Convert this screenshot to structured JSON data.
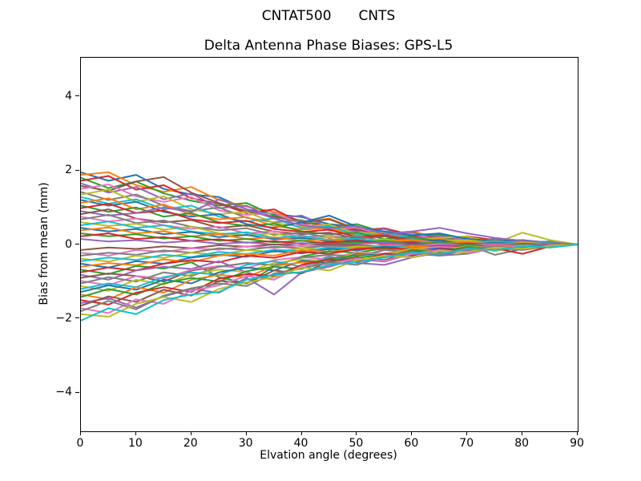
{
  "figure": {
    "background": "#ffffff"
  },
  "suptitle": {
    "left_text": "CNTAT500",
    "right_text": "CNTS"
  },
  "chart_data": {
    "type": "line",
    "title": "Delta Antenna Phase Biases: GPS-L5",
    "xlabel": "Elvation angle (degrees)",
    "ylabel": "Bias from mean (mm)",
    "xlim": [
      0,
      90
    ],
    "ylim": [
      -5.04,
      5.04
    ],
    "grid": false,
    "legend": "none",
    "line_width": 2,
    "xticks": [
      {
        "value": 0,
        "label": "0"
      },
      {
        "value": 10,
        "label": "10"
      },
      {
        "value": 20,
        "label": "20"
      },
      {
        "value": 30,
        "label": "30"
      },
      {
        "value": 40,
        "label": "40"
      },
      {
        "value": 50,
        "label": "50"
      },
      {
        "value": 60,
        "label": "60"
      },
      {
        "value": 70,
        "label": "70"
      },
      {
        "value": 80,
        "label": "80"
      },
      {
        "value": 90,
        "label": "90"
      }
    ],
    "yticks": [
      {
        "value": -4,
        "label": "−4"
      },
      {
        "value": -2,
        "label": "−2"
      },
      {
        "value": 0,
        "label": "0"
      },
      {
        "value": 2,
        "label": "2"
      },
      {
        "value": 4,
        "label": "4"
      }
    ],
    "palette": [
      "#1f77b4",
      "#ff7f0e",
      "#2ca02c",
      "#d62728",
      "#9467bd",
      "#8c564b",
      "#e377c2",
      "#7f7f7f",
      "#bcbd22",
      "#17becf"
    ],
    "x": [
      0,
      5,
      10,
      15,
      20,
      25,
      30,
      35,
      40,
      45,
      50,
      55,
      60,
      65,
      70,
      75,
      80,
      85,
      90
    ],
    "series": [
      {
        "values": [
          1.95,
          1.72,
          1.88,
          1.5,
          1.35,
          1.28,
          0.95,
          0.82,
          0.74,
          0.55,
          0.48,
          0.35,
          0.22,
          0.25,
          0.12,
          0.15,
          0.05,
          0.08,
          0
        ]
      },
      {
        "values": [
          1.88,
          1.95,
          1.6,
          1.42,
          1.55,
          1.2,
          1.02,
          0.88,
          0.62,
          0.7,
          0.42,
          0.3,
          0.35,
          0.18,
          0.2,
          0.08,
          0.12,
          0.03,
          0
        ]
      },
      {
        "values": [
          1.8,
          1.52,
          1.7,
          1.38,
          1.18,
          1.05,
          1.12,
          0.78,
          0.65,
          0.48,
          0.55,
          0.32,
          0.2,
          0.28,
          0.1,
          0.06,
          0.1,
          0.04,
          0
        ]
      },
      {
        "values": [
          1.72,
          1.85,
          1.48,
          1.6,
          1.25,
          1.1,
          0.85,
          0.95,
          0.58,
          0.52,
          0.38,
          0.44,
          0.25,
          0.15,
          0.22,
          0.12,
          0.04,
          0.07,
          0
        ]
      },
      {
        "values": [
          1.65,
          1.4,
          1.55,
          1.22,
          1.38,
          0.98,
          1.05,
          0.7,
          0.78,
          0.45,
          0.35,
          0.42,
          0.18,
          0.24,
          0.08,
          0.14,
          0.06,
          0.02,
          0
        ]
      },
      {
        "values": [
          1.58,
          1.45,
          1.7,
          1.82,
          1.4,
          1.12,
          0.9,
          0.75,
          0.6,
          0.68,
          0.4,
          0.28,
          0.32,
          0.16,
          0.18,
          0.06,
          0.09,
          0.03,
          0
        ]
      },
      {
        "values": [
          1.5,
          1.62,
          1.3,
          1.15,
          1.28,
          0.92,
          0.8,
          0.85,
          0.55,
          0.4,
          0.46,
          0.24,
          0.3,
          0.12,
          0.16,
          0.1,
          0.02,
          0.05,
          0
        ]
      },
      {
        "values": [
          1.42,
          1.2,
          1.35,
          1.05,
          0.9,
          1.0,
          0.72,
          0.6,
          0.66,
          0.38,
          0.3,
          0.36,
          0.15,
          0.2,
          0.06,
          0.12,
          0.07,
          0.04,
          0
        ]
      },
      {
        "values": [
          1.35,
          1.48,
          1.15,
          1.3,
          0.95,
          0.82,
          0.88,
          0.58,
          0.48,
          0.54,
          0.28,
          0.34,
          0.12,
          0.18,
          0.22,
          0.04,
          0.32,
          0.12,
          0
        ]
      },
      {
        "values": [
          1.28,
          1.1,
          1.22,
          0.95,
          1.05,
          0.75,
          0.62,
          0.7,
          0.44,
          0.5,
          0.25,
          0.3,
          0.18,
          0.1,
          0.14,
          0.08,
          0.05,
          0.02,
          0
        ]
      },
      {
        "values": [
          1.2,
          1.05,
          1.15,
          0.88,
          0.75,
          0.82,
          0.55,
          0.45,
          0.6,
          0.78,
          0.48,
          0.35,
          0.25,
          0.3,
          0.15,
          0.1,
          0.12,
          0.05,
          0
        ]
      },
      {
        "values": [
          1.12,
          1.25,
          0.95,
          1.08,
          0.8,
          0.68,
          0.74,
          0.5,
          0.4,
          0.45,
          0.22,
          0.28,
          0.1,
          0.15,
          0.05,
          0.09,
          0.03,
          0.06,
          0
        ]
      },
      {
        "values": [
          1.05,
          0.88,
          1.0,
          0.75,
          0.85,
          0.6,
          0.5,
          0.56,
          0.35,
          0.28,
          0.32,
          0.15,
          0.2,
          0.08,
          0.12,
          0.04,
          0.06,
          0.02,
          0
        ]
      },
      {
        "values": [
          0.98,
          1.1,
          0.85,
          0.92,
          0.68,
          0.58,
          0.64,
          0.42,
          0.34,
          0.4,
          0.2,
          0.25,
          0.12,
          0.06,
          0.1,
          0.03,
          0.05,
          0.01,
          0
        ]
      },
      {
        "values": [
          0.9,
          0.78,
          0.85,
          1.0,
          0.88,
          1.22,
          0.95,
          0.7,
          0.52,
          0.44,
          0.5,
          0.28,
          0.35,
          0.45,
          0.3,
          0.18,
          0.1,
          0.06,
          0
        ]
      },
      {
        "values": [
          0.82,
          0.95,
          0.7,
          0.6,
          0.66,
          0.45,
          0.52,
          0.35,
          0.28,
          0.32,
          0.16,
          0.22,
          0.08,
          0.12,
          0.04,
          0.07,
          0.02,
          0.04,
          0
        ]
      },
      {
        "values": [
          0.75,
          0.62,
          0.7,
          0.52,
          0.42,
          0.48,
          0.3,
          0.36,
          0.2,
          0.25,
          0.12,
          0.08,
          0.14,
          0.05,
          0.08,
          0.02,
          0.04,
          0.01,
          0
        ]
      },
      {
        "values": [
          0.68,
          0.8,
          0.58,
          0.65,
          0.48,
          0.38,
          0.44,
          0.26,
          0.32,
          0.18,
          0.22,
          0.1,
          0.15,
          0.06,
          0.02,
          0.05,
          0.01,
          0.03,
          0
        ]
      },
      {
        "values": [
          0.6,
          0.5,
          0.56,
          0.4,
          0.48,
          0.3,
          0.25,
          0.3,
          0.15,
          0.2,
          0.1,
          0.14,
          0.05,
          0.08,
          0.12,
          0.03,
          0.06,
          0.02,
          0
        ]
      },
      {
        "values": [
          0.52,
          0.62,
          0.45,
          0.52,
          0.35,
          0.28,
          0.33,
          0.18,
          0.24,
          0.12,
          0.16,
          0.06,
          0.1,
          0.03,
          0.05,
          0.08,
          0.02,
          0.04,
          0
        ]
      },
      {
        "values": [
          0.45,
          0.35,
          0.42,
          0.28,
          0.34,
          0.2,
          0.26,
          0.14,
          0.18,
          0.08,
          0.12,
          0.04,
          0.07,
          0.1,
          0.02,
          0.05,
          0.01,
          0.02,
          0
        ]
      },
      {
        "values": [
          0.38,
          0.46,
          0.3,
          0.36,
          0.22,
          0.28,
          0.15,
          0.2,
          0.1,
          0.14,
          0.05,
          0.08,
          0.12,
          0.04,
          0.06,
          0.01,
          0.03,
          0.01,
          0
        ]
      },
      {
        "values": [
          0.3,
          0.22,
          0.28,
          0.16,
          0.22,
          0.1,
          0.15,
          0.06,
          0.1,
          0.03,
          0.06,
          0.1,
          0.02,
          0.05,
          0.01,
          0.03,
          0.0,
          0.02,
          0
        ]
      },
      {
        "values": [
          0.22,
          0.3,
          0.15,
          0.2,
          0.1,
          0.14,
          0.05,
          0.09,
          0.02,
          0.06,
          0.1,
          0.01,
          0.04,
          0.0,
          0.03,
          0.0,
          0.02,
          0.0,
          0
        ]
      },
      {
        "values": [
          0.15,
          0.08,
          0.12,
          0.05,
          0.1,
          0.02,
          0.06,
          0.0,
          0.04,
          0.0,
          0.02,
          0.05,
          0.0,
          0.03,
          0.0,
          0.02,
          0.0,
          0.01,
          0
        ]
      },
      {
        "values": [
          -0.15,
          -0.08,
          -0.12,
          -0.05,
          -0.1,
          -0.02,
          -0.06,
          0.0,
          -0.04,
          0.0,
          -0.02,
          -0.05,
          0.0,
          -0.03,
          0.0,
          -0.02,
          0.0,
          -0.01,
          0
        ]
      },
      {
        "values": [
          -0.22,
          -0.3,
          -0.15,
          -0.2,
          -0.1,
          -0.14,
          -0.05,
          -0.09,
          -0.02,
          -0.06,
          -0.1,
          -0.01,
          -0.04,
          0.0,
          -0.03,
          0.0,
          -0.02,
          0.0,
          0
        ]
      },
      {
        "values": [
          -0.3,
          -0.22,
          -0.28,
          -0.16,
          -0.22,
          -0.1,
          -0.15,
          -0.06,
          -0.1,
          -0.03,
          -0.06,
          -0.1,
          -0.02,
          -0.05,
          -0.01,
          -0.28,
          -0.12,
          -0.02,
          0
        ]
      },
      {
        "values": [
          -0.38,
          -0.46,
          -0.3,
          -0.36,
          -0.22,
          -0.28,
          -0.15,
          -0.2,
          -0.1,
          -0.14,
          -0.05,
          -0.08,
          -0.12,
          -0.04,
          -0.06,
          -0.18,
          -0.03,
          -0.08,
          0
        ]
      },
      {
        "values": [
          -0.45,
          -0.35,
          -0.42,
          -0.28,
          -0.34,
          -0.2,
          -0.26,
          -0.14,
          -0.18,
          -0.08,
          -0.12,
          -0.04,
          -0.07,
          -0.1,
          -0.02,
          -0.05,
          -0.01,
          -0.02,
          0
        ]
      },
      {
        "values": [
          -0.52,
          -0.62,
          -0.45,
          -0.52,
          -0.35,
          -0.28,
          -0.33,
          -0.18,
          -0.24,
          -0.12,
          -0.16,
          -0.06,
          -0.1,
          -0.03,
          -0.05,
          -0.08,
          -0.02,
          -0.04,
          0
        ]
      },
      {
        "values": [
          -0.6,
          -0.5,
          -0.56,
          -0.4,
          -0.48,
          -0.3,
          -0.25,
          -0.3,
          -0.15,
          -0.2,
          -0.1,
          -0.14,
          -0.05,
          -0.08,
          -0.12,
          -0.03,
          -0.06,
          -0.02,
          0
        ]
      },
      {
        "values": [
          -0.68,
          -0.8,
          -0.58,
          -0.65,
          -0.48,
          -0.88,
          -1.05,
          -0.6,
          -0.32,
          -0.18,
          -0.22,
          -0.1,
          -0.15,
          -0.06,
          -0.02,
          -0.05,
          -0.01,
          -0.03,
          0
        ]
      },
      {
        "values": [
          -0.75,
          -0.62,
          -0.7,
          -0.52,
          -0.42,
          -0.48,
          -0.3,
          -0.36,
          -0.2,
          -0.25,
          -0.12,
          -0.08,
          -0.14,
          -0.05,
          -0.08,
          -0.02,
          -0.04,
          -0.01,
          0
        ]
      },
      {
        "values": [
          -0.82,
          -0.95,
          -0.7,
          -0.6,
          -0.66,
          -0.45,
          -0.75,
          -0.95,
          -0.55,
          -0.32,
          -0.5,
          -0.55,
          -0.35,
          -0.22,
          -0.12,
          -0.07,
          -0.02,
          -0.04,
          0
        ]
      },
      {
        "values": [
          -0.9,
          -0.78,
          -0.85,
          -1.0,
          -0.7,
          -0.6,
          -0.5,
          -0.56,
          -0.35,
          -0.28,
          -0.32,
          -0.15,
          -0.2,
          -0.08,
          -0.12,
          -0.04,
          -0.06,
          -0.02,
          0
        ]
      },
      {
        "values": [
          -0.98,
          -1.1,
          -0.85,
          -0.92,
          -0.68,
          -0.58,
          -0.64,
          -0.42,
          -0.34,
          -0.4,
          -0.2,
          -0.25,
          -0.12,
          -0.06,
          -0.1,
          -0.03,
          -0.05,
          -0.01,
          0
        ]
      },
      {
        "values": [
          -1.05,
          -0.88,
          -1.0,
          -0.75,
          -0.85,
          -0.6,
          -0.5,
          -0.56,
          -0.35,
          -0.28,
          -0.32,
          -0.15,
          -0.2,
          -0.3,
          -0.25,
          -0.1,
          -0.15,
          -0.05,
          0
        ]
      },
      {
        "values": [
          -1.12,
          -1.25,
          -0.95,
          -1.08,
          -0.8,
          -0.68,
          -0.74,
          -0.5,
          -0.4,
          -0.45,
          -0.22,
          -0.28,
          -0.1,
          -0.15,
          -0.05,
          -0.09,
          -0.03,
          -0.06,
          0
        ]
      },
      {
        "values": [
          -1.2,
          -1.05,
          -1.15,
          -0.88,
          -0.75,
          -0.82,
          -0.55,
          -0.45,
          -0.6,
          -0.35,
          -0.48,
          -0.25,
          -0.3,
          -0.15,
          -0.1,
          -0.12,
          -0.05,
          -0.02,
          0
        ]
      },
      {
        "values": [
          -1.28,
          -1.1,
          -1.22,
          -0.95,
          -1.05,
          -0.75,
          -0.62,
          -0.7,
          -0.44,
          -0.5,
          -0.25,
          -0.3,
          -0.18,
          -0.1,
          -0.14,
          -0.08,
          -0.05,
          -0.02,
          0
        ]
      },
      {
        "values": [
          -1.35,
          -1.48,
          -1.15,
          -1.3,
          -0.95,
          -0.82,
          -0.88,
          -0.58,
          -0.48,
          -0.54,
          -0.28,
          -0.34,
          -0.12,
          -0.18,
          -0.22,
          -0.04,
          -0.08,
          -0.03,
          0
        ]
      },
      {
        "values": [
          -1.42,
          -1.2,
          -1.35,
          -1.05,
          -0.9,
          -1.0,
          -0.72,
          -0.6,
          -0.66,
          -0.38,
          -0.3,
          -0.36,
          -0.15,
          -0.2,
          -0.06,
          -0.12,
          -0.07,
          -0.04,
          0
        ]
      },
      {
        "values": [
          -1.5,
          -1.62,
          -1.3,
          -1.15,
          -1.28,
          -0.92,
          -0.8,
          -0.85,
          -0.55,
          -0.4,
          -0.46,
          -0.24,
          -0.3,
          -0.12,
          -0.16,
          -0.1,
          -0.25,
          -0.05,
          0
        ]
      },
      {
        "values": [
          -1.58,
          -1.45,
          -1.7,
          -1.4,
          -1.2,
          -1.3,
          -0.9,
          -1.35,
          -0.75,
          -0.6,
          -0.4,
          -0.46,
          -0.25,
          -0.3,
          -0.15,
          -0.08,
          -0.1,
          -0.04,
          0
        ]
      },
      {
        "values": [
          -1.65,
          -1.4,
          -1.55,
          -1.22,
          -1.38,
          -0.98,
          -1.05,
          -0.7,
          -0.78,
          -0.45,
          -0.35,
          -0.42,
          -0.18,
          -0.24,
          -0.08,
          -0.14,
          -0.06,
          -0.02,
          0
        ]
      },
      {
        "values": [
          -1.72,
          -1.85,
          -1.48,
          -1.6,
          -1.25,
          -1.1,
          -0.85,
          -0.95,
          -0.58,
          -0.52,
          -0.38,
          -0.44,
          -0.25,
          -0.15,
          -0.22,
          -0.12,
          -0.04,
          -0.07,
          0
        ]
      },
      {
        "values": [
          -1.8,
          -1.52,
          -1.75,
          -1.38,
          -1.18,
          -1.05,
          -1.12,
          -0.78,
          -0.65,
          -0.48,
          -0.55,
          -0.32,
          -0.2,
          -0.28,
          -0.1,
          -0.06,
          -0.1,
          -0.04,
          0
        ]
      },
      {
        "values": [
          -1.88,
          -1.95,
          -1.6,
          -1.42,
          -1.55,
          -1.2,
          -1.02,
          -0.88,
          -0.62,
          -0.7,
          -0.42,
          -0.3,
          -0.35,
          -0.18,
          -0.2,
          -0.08,
          -0.12,
          -0.03,
          0
        ]
      },
      {
        "values": [
          -2.05,
          -1.72,
          -1.88,
          -1.5,
          -1.35,
          -1.28,
          -0.95,
          -0.82,
          -0.74,
          -0.55,
          -0.48,
          -0.35,
          -0.22,
          -0.25,
          -0.12,
          -0.15,
          -0.05,
          -0.08,
          0
        ]
      }
    ]
  }
}
